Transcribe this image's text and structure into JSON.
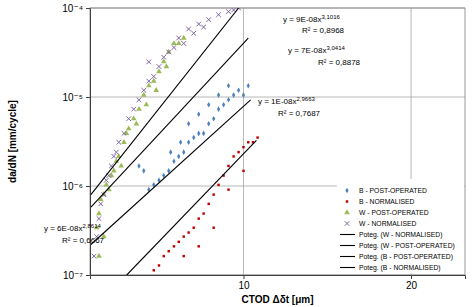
{
  "chart_data": {
    "type": "scatter",
    "x_label": "CTOD Δδt [μm]",
    "y_label": "da/dN [mm/cycle]",
    "log": true,
    "grid": true,
    "legend": "lower right",
    "xlim": [
      5.3,
      25
    ],
    "ylim": [
      1e-07,
      0.0001
    ],
    "xticks": [
      10,
      20
    ],
    "yticks": [
      {
        "value": 1e-07,
        "label": "10⁻⁷"
      },
      {
        "value": 1e-06,
        "label": "10⁻⁶"
      },
      {
        "value": 1e-05,
        "label": "10⁻⁵"
      },
      {
        "value": 0.0001,
        "label": "10⁻⁴"
      }
    ],
    "series": [
      {
        "name": "B - POST-OPERATED",
        "color": "#4f81bd",
        "marker": "diamond",
        "x": [
          6.49,
          6.62,
          6.76,
          6.9,
          7.05,
          7.19,
          7.34,
          7.4,
          7.5,
          7.65,
          7.71,
          7.81,
          7.97,
          7.97,
          8.14,
          8.31,
          8.31,
          8.48,
          8.66,
          8.66,
          8.84,
          9.02,
          9.02,
          9.21,
          9.4,
          9.4,
          9.6,
          9.8,
          10.0,
          10.2
        ],
        "values": [
          1.68e-06,
          1.48e-06,
          9.1e-07,
          1.03e-06,
          1.16e-06,
          1.31e-06,
          1.48e-06,
          2.4e-06,
          1.9e-06,
          2.15e-06,
          3.1e-06,
          2.4e-06,
          3.1e-06,
          5e-06,
          3.5e-06,
          3.9e-06,
          6.4e-06,
          3.9e-06,
          5e-06,
          8.2e-06,
          5.7e-06,
          7.3e-06,
          1.05e-05,
          8.2e-06,
          9.3e-06,
          1.34e-05,
          1.05e-05,
          1.19e-05,
          1.05e-05,
          1.34e-05
        ]
      },
      {
        "name": "B - NORMALISED",
        "color": "#c00000",
        "marker": "square",
        "x": [
          6.9,
          7.05,
          7.19,
          7.34,
          7.5,
          7.65,
          7.81,
          7.81,
          7.97,
          8.14,
          8.31,
          8.31,
          8.48,
          8.66,
          8.84,
          8.84,
          9.02,
          9.21,
          9.4,
          9.4,
          9.6,
          9.8,
          10.0,
          10.0,
          10.2,
          10.4,
          10.6
        ],
        "values": [
          1.13e-07,
          1.28e-07,
          1.63e-07,
          1.85e-07,
          2.1e-07,
          2.36e-07,
          2.7e-07,
          1.63e-07,
          3e-07,
          3.4e-07,
          4.3e-07,
          2.1e-07,
          4.9e-07,
          6.3e-07,
          8e-07,
          3.4e-07,
          1.03e-06,
          1.31e-06,
          1.68e-06,
          9.1e-07,
          2.15e-06,
          2.4e-06,
          2.73e-06,
          1.48e-06,
          3.1e-06,
          3.1e-06,
          3.5e-06
        ]
      },
      {
        "name": "W - POST-OPERATED",
        "color": "#9bbb59",
        "marker": "triangle",
        "x": [
          5.45,
          5.5,
          5.5,
          5.54,
          5.61,
          5.61,
          5.67,
          5.73,
          5.79,
          5.85,
          5.91,
          5.97,
          6.03,
          6.1,
          6.16,
          6.22,
          6.35,
          6.42,
          6.49,
          6.62,
          6.69,
          6.76,
          6.9,
          6.97,
          7.05,
          7.19,
          7.27,
          7.34,
          7.5,
          7.65,
          7.81
        ],
        "values": [
          3.4e-07,
          1.63e-07,
          4.9e-07,
          7.1e-07,
          2.7e-07,
          8e-07,
          1.03e-06,
          9.1e-07,
          1.31e-06,
          1.48e-06,
          1.9e-06,
          2.15e-06,
          1.68e-06,
          3.1e-06,
          3.9e-06,
          4.4e-06,
          5.7e-06,
          5e-06,
          7.3e-06,
          1.05e-05,
          8.2e-06,
          1.34e-05,
          1.51e-05,
          1.19e-05,
          1.93e-05,
          2.5e-05,
          2.2e-05,
          3.2e-05,
          4e-05,
          4e-05,
          4.6e-05
        ]
      },
      {
        "name": "W - NORMALISED",
        "color": "#8064a2",
        "marker": "x",
        "x": [
          5.39,
          5.45,
          5.5,
          5.54,
          5.61,
          5.67,
          5.73,
          5.79,
          5.85,
          5.91,
          5.97,
          6.1,
          6.22,
          6.35,
          6.49,
          6.62,
          6.76,
          6.76,
          6.9,
          7.05,
          7.19,
          7.34,
          7.5,
          7.65,
          7.81,
          7.97,
          8.14,
          8.31,
          8.48,
          8.66,
          9.02,
          9.4,
          9.6,
          9.8
        ],
        "values": [
          1.63e-07,
          2.7e-07,
          4.3e-07,
          6.3e-07,
          8e-07,
          1.16e-06,
          1.31e-06,
          1.68e-06,
          2.15e-06,
          2.4e-06,
          3.1e-06,
          3.9e-06,
          5.7e-06,
          7.3e-06,
          9.3e-06,
          1.19e-05,
          1.51e-05,
          2.48e-05,
          1.7e-05,
          2.2e-05,
          2.8e-05,
          3.2e-05,
          3.6e-05,
          4.6e-05,
          4e-05,
          5.8e-05,
          5.2e-05,
          6.6e-05,
          6.1e-05,
          7.4e-05,
          8.4e-05,
          9.1e-05,
          9.5e-05,
          0.0001
        ]
      },
      {
        "name": "Poteg. (W - NORMALISED)",
        "type": "line",
        "color": "#000000",
        "line_style": "solid",
        "x": [
          5.32,
          9.8
        ],
        "values": [
          8e-07,
          0.0001
        ]
      },
      {
        "name": "Poteg. (W - POST-OPERATED)",
        "type": "line",
        "color": "#000000",
        "line_style": "solid",
        "x": [
          5.32,
          10.2
        ],
        "values": [
          5.8e-07,
          4.6e-05
        ]
      },
      {
        "name": "Poteg. (B - POST-OPERATED)",
        "type": "line",
        "color": "#000000",
        "line_style": "solid",
        "x": [
          5.32,
          10.3
        ],
        "values": [
          2.2e-07,
          9.3e-06
        ]
      },
      {
        "name": "Poteg. (B - NORMALISED)",
        "type": "line",
        "color": "#000000",
        "line_style": "solid",
        "x": [
          6.17,
          10.55
        ],
        "values": [
          1e-07,
          3.25e-06
        ]
      }
    ],
    "annotations": [
      {
        "text": "y = 9E-08x",
        "exponent": "3,1016",
        "r2": "R² = 0,8968"
      },
      {
        "text": "y = 7E-08x",
        "exponent": "3,0414",
        "r2": "R² = 0,8878"
      },
      {
        "text": "y = 1E-08x",
        "exponent": "2,9663",
        "r2": "R² = 0,7687"
      },
      {
        "text": "y = 6E-08x",
        "exponent": "2,8614",
        "r2": "R² = 0,6667"
      }
    ]
  }
}
